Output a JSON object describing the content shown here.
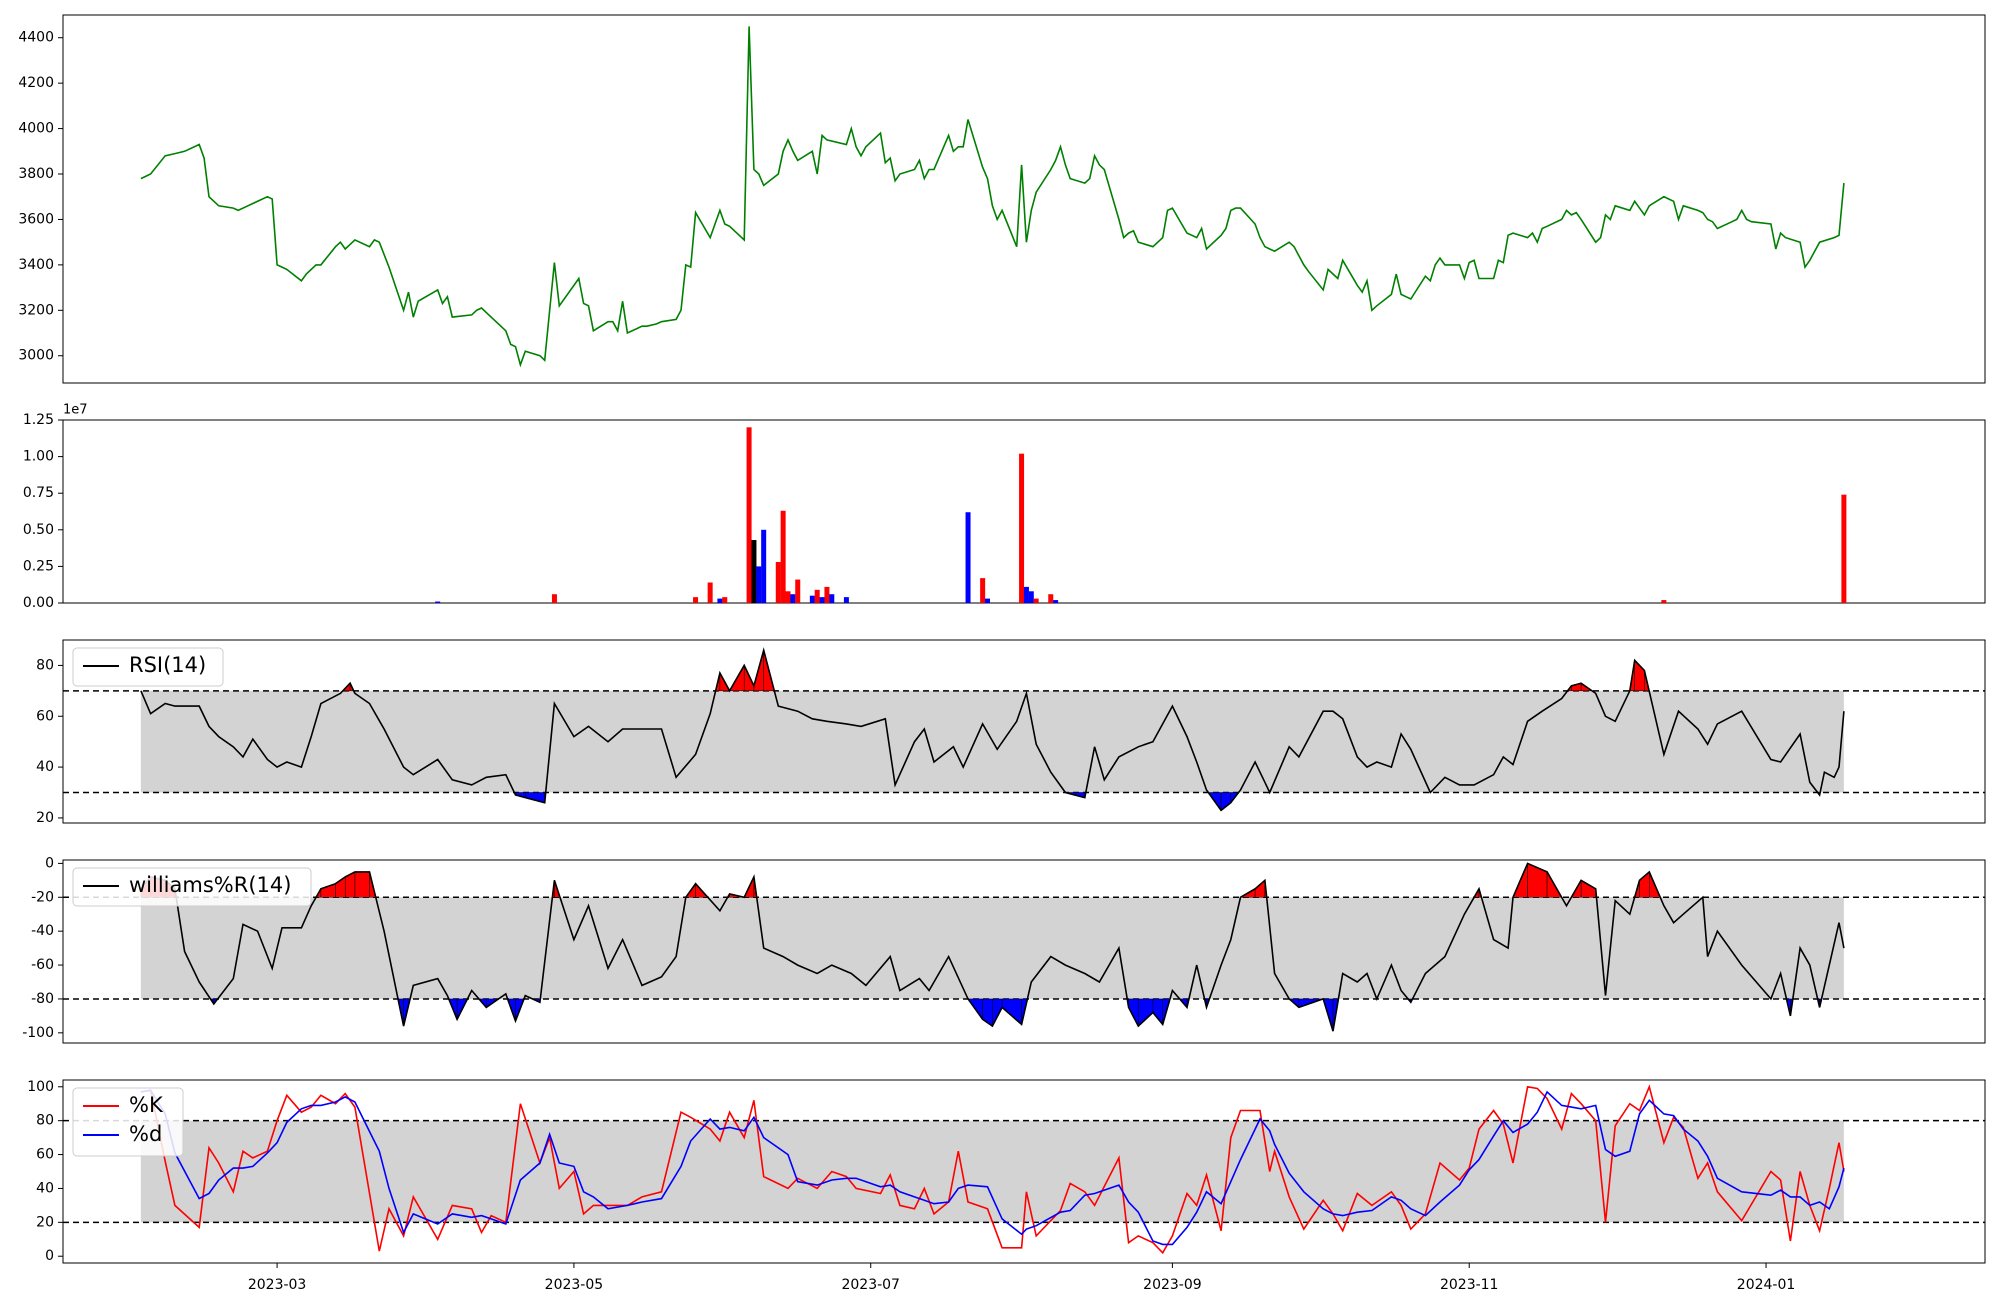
{
  "chart_data": [
    {
      "type": "line",
      "panel": "price",
      "ylim": [
        2880,
        4500
      ],
      "yticks": [
        3000,
        3200,
        3400,
        3600,
        3800,
        4000,
        4200,
        4400
      ],
      "colors": {
        "line": "#008000"
      },
      "series": [
        {
          "points": [
            [
              "2023-02-01",
              3780
            ],
            [
              "2023-02-03",
              3820
            ],
            [
              "2023-02-06",
              3900
            ],
            [
              "2023-02-08",
              3920
            ],
            [
              "2023-02-10",
              3940
            ],
            [
              "2023-02-13",
              3950
            ],
            [
              "2023-02-15",
              3680
            ],
            [
              "2023-02-18",
              3600
            ],
            [
              "2023-02-21",
              3560
            ],
            [
              "2023-02-23",
              3520
            ],
            [
              "2023-02-25",
              3540
            ],
            [
              "2023-02-27",
              3600
            ],
            [
              "2023-03-01",
              3390
            ],
            [
              "2023-03-03",
              3380
            ],
            [
              "2023-03-06",
              3360
            ],
            [
              "2023-03-08",
              3280
            ],
            [
              "2023-03-10",
              3370
            ],
            [
              "2023-03-13",
              3400
            ],
            [
              "2023-03-15",
              3400
            ],
            [
              "2023-03-17",
              3470
            ],
            [
              "2023-03-20",
              3500
            ],
            [
              "2023-03-22",
              3470
            ],
            [
              "2023-03-24",
              3490
            ],
            [
              "2023-03-27",
              3500
            ],
            [
              "2023-03-29",
              3530
            ],
            [
              "2023-03-31",
              3510
            ],
            [
              "2023-04-03",
              3430
            ],
            [
              "2023-04-05",
              3200
            ],
            [
              "2023-04-07",
              3270
            ],
            [
              "2023-04-10",
              3170
            ],
            [
              "2023-04-12",
              3240
            ],
            [
              "2023-04-14",
              3260
            ],
            [
              "2023-04-17",
              3300
            ],
            [
              "2023-04-19",
              3170
            ],
            [
              "2023-04-21",
              3180
            ],
            [
              "2023-04-24",
              3200
            ],
            [
              "2023-04-26",
              3180
            ],
            [
              "2023-04-28",
              3200
            ],
            [
              "2023-05-01",
              3030
            ],
            [
              "2023-05-03",
              3050
            ],
            [
              "2023-05-05",
              2960
            ],
            [
              "2023-05-08",
              3010
            ],
            [
              "2023-05-10",
              3010
            ],
            [
              "2023-04-13",
              3420
            ]
          ]
        }
      ]
    }
  ]
}
